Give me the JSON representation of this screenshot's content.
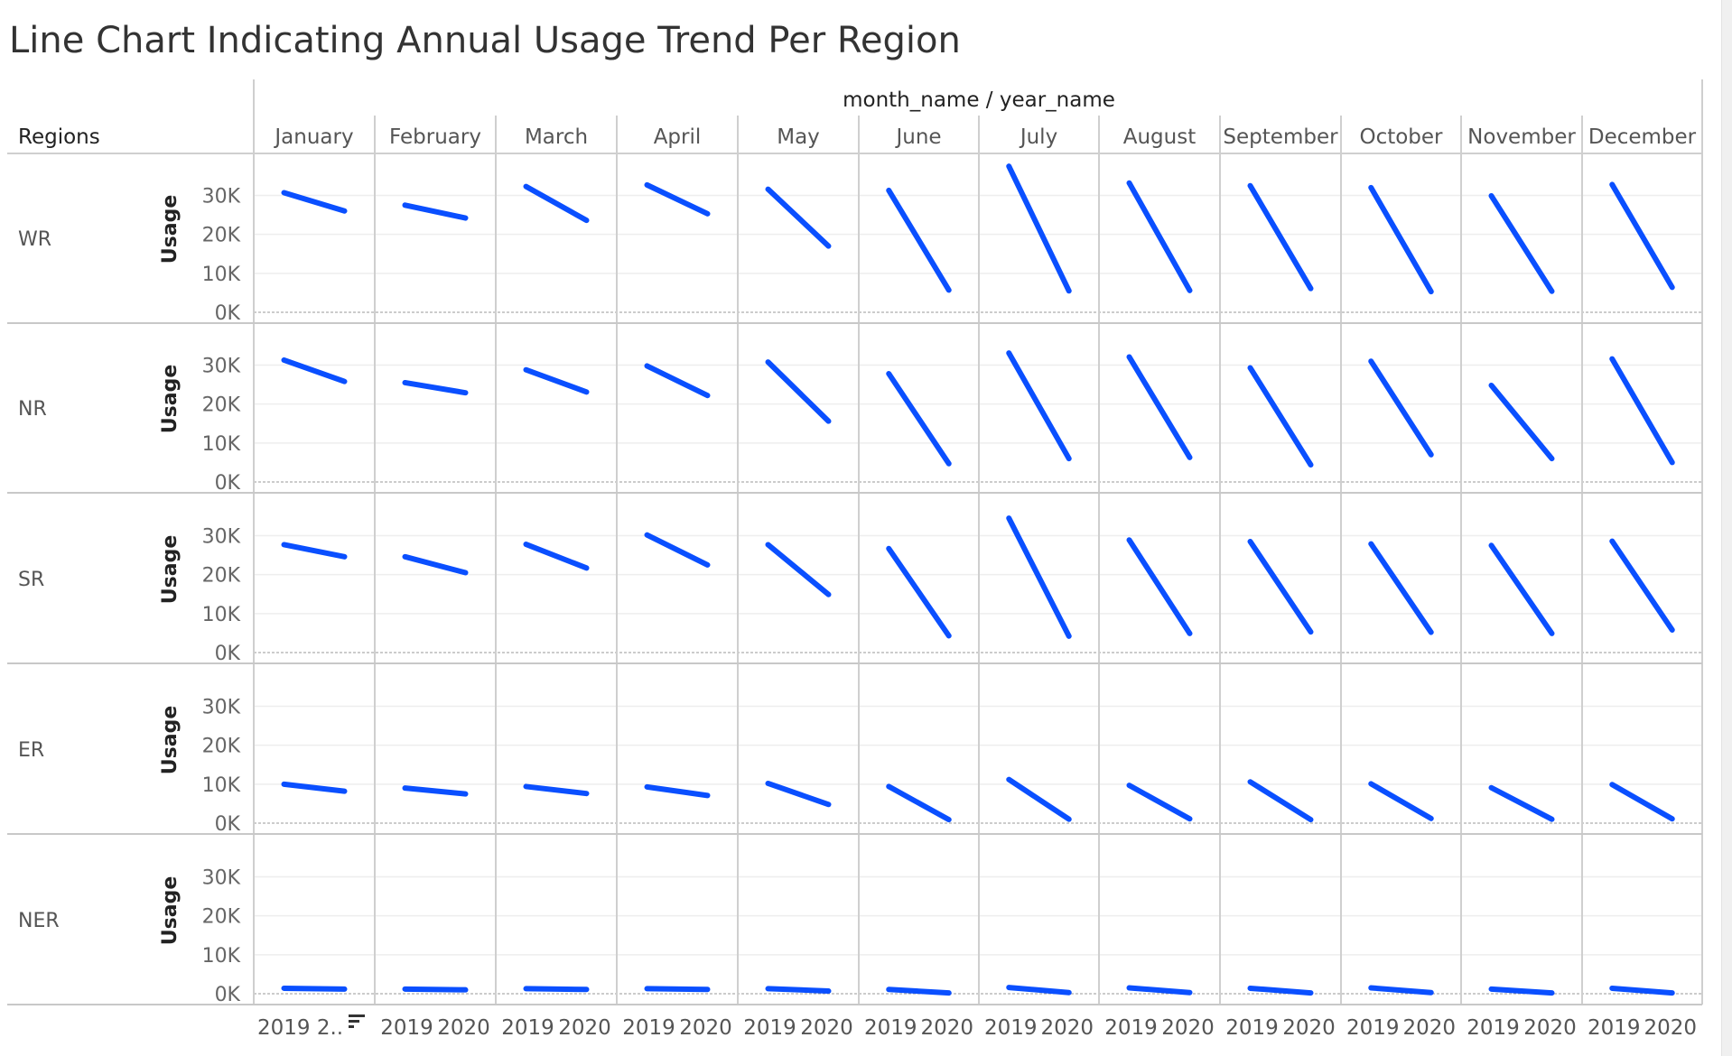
{
  "chart_data": {
    "type": "line",
    "title": "Line Chart Indicating Annual Usage Trend Per Region",
    "column_header": "month_name / year_name",
    "row_header": "Regions",
    "ylabel": "Usage",
    "ylim": [
      0,
      38000
    ],
    "y_ticks": [
      {
        "value": 0,
        "label": "0K"
      },
      {
        "value": 10000,
        "label": "10K"
      },
      {
        "value": 20000,
        "label": "20K"
      },
      {
        "value": 30000,
        "label": "30K"
      }
    ],
    "x_categories": [
      "2019",
      "2020"
    ],
    "x_tick_labels": {
      "January": [
        "2019 2..",
        ""
      ],
      "default": [
        "2019",
        "2020"
      ]
    },
    "months": [
      "January",
      "February",
      "March",
      "April",
      "May",
      "June",
      "July",
      "August",
      "September",
      "October",
      "November",
      "December"
    ],
    "regions": [
      "WR",
      "NR",
      "SR",
      "ER",
      "NER"
    ],
    "series": [
      {
        "region": "WR",
        "values_2019": [
          30700,
          27500,
          32300,
          32700,
          31600,
          31300,
          37500,
          33200,
          32500,
          32000,
          29900,
          32800
        ],
        "values_2020": [
          26000,
          24200,
          23600,
          25300,
          17000,
          5700,
          5500,
          5600,
          6100,
          5300,
          5400,
          6400
        ]
      },
      {
        "region": "NR",
        "values_2019": [
          31300,
          25500,
          28800,
          29800,
          30800,
          27800,
          33100,
          32100,
          29300,
          31000,
          24800,
          31600
        ],
        "values_2020": [
          25800,
          22900,
          23100,
          22200,
          15600,
          4700,
          6000,
          6300,
          4400,
          7000,
          6000,
          5000
        ]
      },
      {
        "region": "SR",
        "values_2019": [
          27700,
          24600,
          27800,
          30200,
          27700,
          26700,
          34500,
          28900,
          28500,
          27900,
          27500,
          28600
        ],
        "values_2020": [
          24600,
          20500,
          21700,
          22500,
          14900,
          4300,
          4200,
          4900,
          5300,
          5200,
          4900,
          5800
        ]
      },
      {
        "region": "ER",
        "values_2019": [
          10000,
          9000,
          9400,
          9300,
          10200,
          9400,
          11200,
          9700,
          10600,
          10100,
          9100,
          9900
        ],
        "values_2020": [
          8200,
          7500,
          7600,
          7100,
          4800,
          900,
          1000,
          1100,
          900,
          1200,
          1000,
          1100
        ]
      },
      {
        "region": "NER",
        "values_2019": [
          1400,
          1200,
          1300,
          1300,
          1300,
          1100,
          1600,
          1500,
          1400,
          1500,
          1200,
          1400
        ],
        "values_2020": [
          1200,
          1000,
          1100,
          1100,
          700,
          200,
          300,
          300,
          200,
          300,
          200,
          200
        ]
      }
    ],
    "line_color": "#0a4fff",
    "grid": true
  }
}
